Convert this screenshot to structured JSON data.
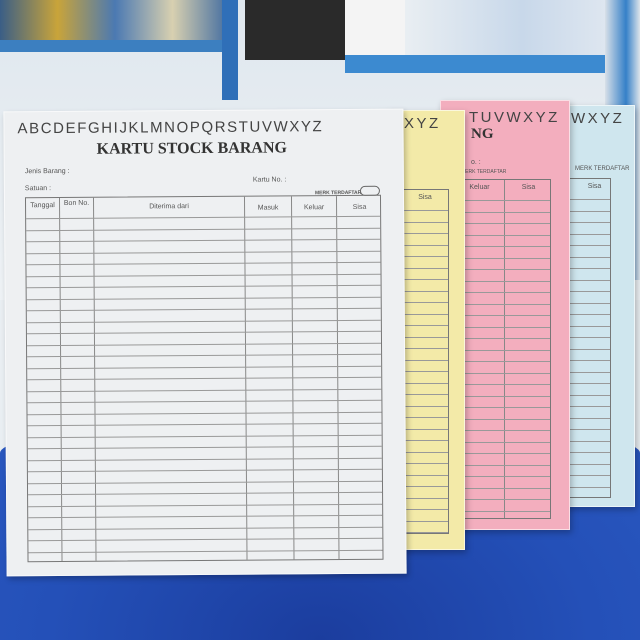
{
  "colors": {
    "white_card": "#eef0f2",
    "yellow_card": "#f3eaa8",
    "pink_card": "#f3aebe",
    "blue_card": "#cfe6ee",
    "table": "#2450b8"
  },
  "white_card": {
    "alphabet": "ABCDEFGHIJKLMNOPQRSTUVWXYZ",
    "title": "KARTU STOCK BARANG",
    "field_jenis": "Jenis Barang   :",
    "field_satuan": "Satuan         :",
    "field_kartu": "Kartu No. :",
    "brand": "MERK TERDAFTAR",
    "headers": [
      "Tanggal",
      "Bon No.",
      "Diterima dari",
      "Masuk",
      "Keluar",
      "Sisa"
    ]
  },
  "yellow_card": {
    "alphabet": "XYZ",
    "header": "Sisa"
  },
  "pink_card": {
    "alphabet": "TUVWXYZ",
    "title_fragment": "NG",
    "field_fragment": "o. :",
    "brand": "MERK TERDAFTAR",
    "headers": [
      "Keluar",
      "Sisa"
    ]
  },
  "blue_card": {
    "alphabet": "WXYZ",
    "brand": "MERK TERDAFTAR",
    "header": "Sisa"
  }
}
